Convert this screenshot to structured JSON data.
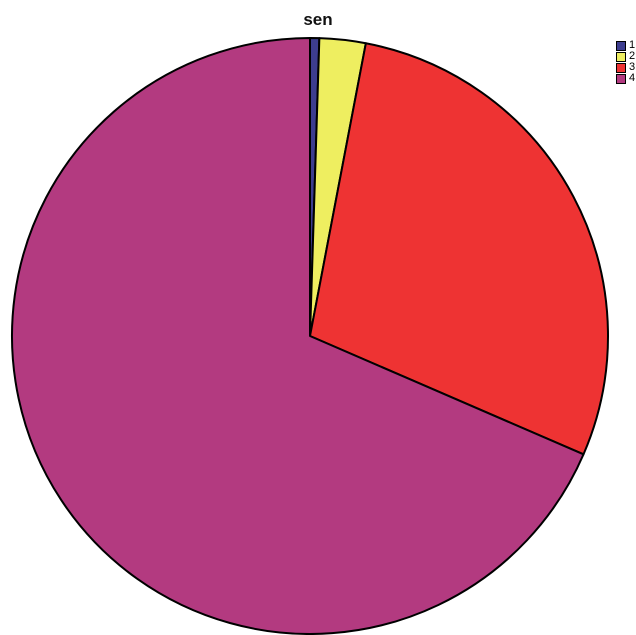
{
  "chart_data": {
    "type": "pie",
    "title": "sen",
    "start_angle_deg": 0,
    "direction": "clockwise",
    "legend_position": "top-right",
    "slices": [
      {
        "label": "1",
        "value": 0.5,
        "color": "#3d3d8f"
      },
      {
        "label": "2",
        "value": 2.5,
        "color": "#eeee60"
      },
      {
        "label": "3",
        "value": 28.5,
        "color": "#ee3333"
      },
      {
        "label": "4",
        "value": 68.5,
        "color": "#b33a80"
      }
    ]
  }
}
